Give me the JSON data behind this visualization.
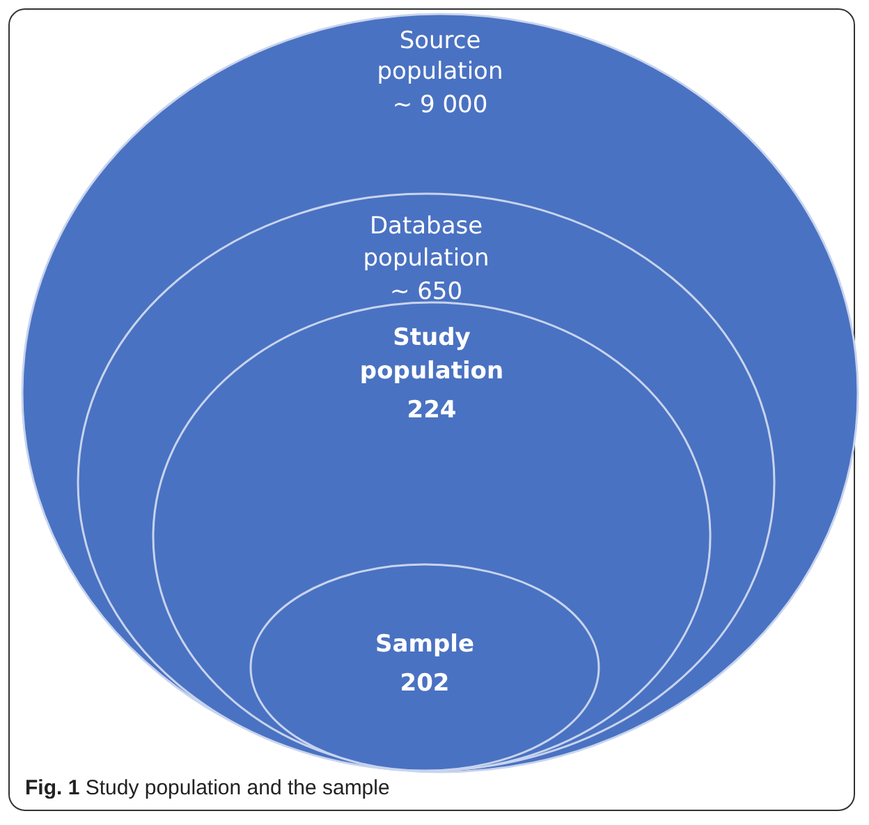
{
  "chart_data": {
    "type": "other",
    "categories": [
      "Source population",
      "Database population",
      "Study population",
      "Sample"
    ],
    "values": [
      9000,
      650,
      224,
      202
    ],
    "value_labels": [
      "~ 9 000",
      "~ 650",
      "224",
      "202"
    ],
    "color": "#4a72c2",
    "annotations": [
      "Fig. 1 Study population and the sample"
    ]
  }
}
